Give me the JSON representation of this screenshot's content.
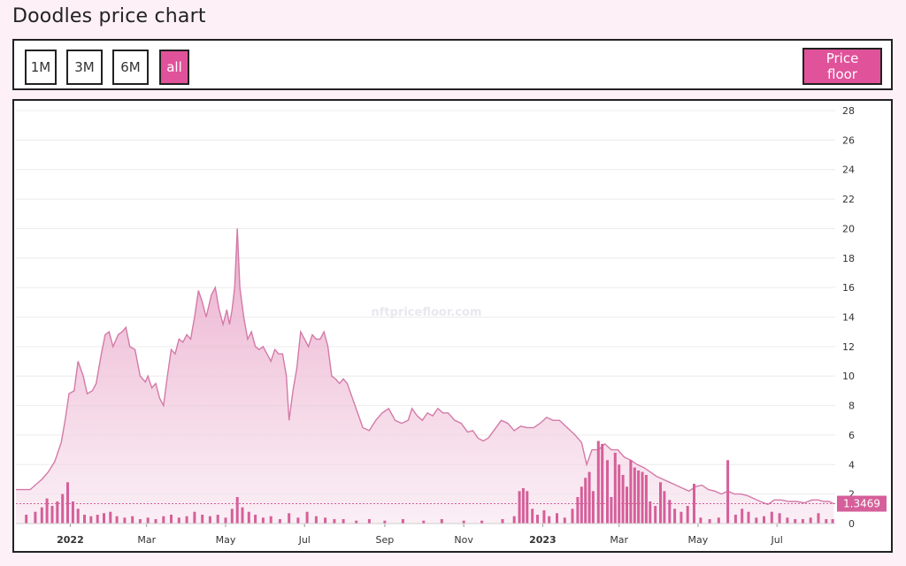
{
  "page": {
    "title": "Doodles price chart"
  },
  "toolbar": {
    "ranges": [
      {
        "label": "1M",
        "active": false
      },
      {
        "label": "3M",
        "active": false
      },
      {
        "label": "6M",
        "active": false
      },
      {
        "label": "all",
        "active": true
      }
    ],
    "floor_label": "Price floor"
  },
  "colors": {
    "accent": "#e0529a",
    "line": "#d37aa8",
    "area": "#f0c2d8",
    "volume": "#d55f9a"
  },
  "watermark": "nftpricefloor.com",
  "chart_data": {
    "type": "area",
    "title": "",
    "xlabel": "",
    "ylabel": "",
    "ylim": [
      0,
      28
    ],
    "y_ticks": [
      "0",
      "2",
      "4",
      "6",
      "8",
      "10",
      "12",
      "14",
      "16",
      "18",
      "20",
      "22",
      "24",
      "26",
      "28"
    ],
    "x_ticks": [
      {
        "label": "2022",
        "month": "2022-01",
        "bold": true
      },
      {
        "label": "Mar",
        "month": "2022-03",
        "bold": false
      },
      {
        "label": "May",
        "month": "2022-05",
        "bold": false
      },
      {
        "label": "Jul",
        "month": "2022-07",
        "bold": false
      },
      {
        "label": "Sep",
        "month": "2022-09",
        "bold": false
      },
      {
        "label": "Nov",
        "month": "2022-11",
        "bold": false
      },
      {
        "label": "2023",
        "month": "2023-01",
        "bold": true
      },
      {
        "label": "Mar",
        "month": "2023-03",
        "bold": false
      },
      {
        "label": "May",
        "month": "2023-05",
        "bold": false
      },
      {
        "label": "Jul",
        "month": "2023-07",
        "bold": false
      }
    ],
    "last_value_label": "1.3469",
    "last_value": 1.3469,
    "grid": true,
    "series": [
      {
        "values": [
          [
            "2021-11-20",
            2.3
          ],
          [
            "2021-12-01",
            2.3
          ],
          [
            "2021-12-10",
            3.0
          ],
          [
            "2021-12-15",
            3.5
          ],
          [
            "2021-12-20",
            4.2
          ],
          [
            "2021-12-25",
            5.5
          ],
          [
            "2021-12-28",
            7.0
          ],
          [
            "2021-12-31",
            8.8
          ],
          [
            "2022-01-04",
            9.0
          ],
          [
            "2022-01-07",
            11.0
          ],
          [
            "2022-01-11",
            10.0
          ],
          [
            "2022-01-14",
            8.8
          ],
          [
            "2022-01-18",
            9.0
          ],
          [
            "2022-01-21",
            9.5
          ],
          [
            "2022-01-25",
            11.5
          ],
          [
            "2022-01-28",
            12.8
          ],
          [
            "2022-01-31",
            13.0
          ],
          [
            "2022-02-03",
            12.0
          ],
          [
            "2022-02-07",
            12.8
          ],
          [
            "2022-02-10",
            13.0
          ],
          [
            "2022-02-13",
            13.3
          ],
          [
            "2022-02-16",
            12.0
          ],
          [
            "2022-02-20",
            11.8
          ],
          [
            "2022-02-24",
            10.0
          ],
          [
            "2022-02-28",
            9.6
          ],
          [
            "2022-03-02",
            10.0
          ],
          [
            "2022-03-05",
            9.2
          ],
          [
            "2022-03-08",
            9.5
          ],
          [
            "2022-03-11",
            8.5
          ],
          [
            "2022-03-14",
            8.0
          ],
          [
            "2022-03-17",
            10.0
          ],
          [
            "2022-03-20",
            11.8
          ],
          [
            "2022-03-23",
            11.5
          ],
          [
            "2022-03-26",
            12.5
          ],
          [
            "2022-03-29",
            12.3
          ],
          [
            "2022-04-01",
            12.8
          ],
          [
            "2022-04-04",
            12.5
          ],
          [
            "2022-04-07",
            14.0
          ],
          [
            "2022-04-10",
            15.8
          ],
          [
            "2022-04-13",
            15.0
          ],
          [
            "2022-04-16",
            14.0
          ],
          [
            "2022-04-20",
            15.5
          ],
          [
            "2022-04-23",
            16.0
          ],
          [
            "2022-04-26",
            14.5
          ],
          [
            "2022-04-29",
            13.5
          ],
          [
            "2022-05-02",
            14.5
          ],
          [
            "2022-05-04",
            13.5
          ],
          [
            "2022-05-06",
            14.5
          ],
          [
            "2022-05-08",
            16.0
          ],
          [
            "2022-05-10",
            20.0
          ],
          [
            "2022-05-12",
            16.0
          ],
          [
            "2022-05-15",
            14.0
          ],
          [
            "2022-05-18",
            12.5
          ],
          [
            "2022-05-21",
            13.0
          ],
          [
            "2022-05-24",
            12.0
          ],
          [
            "2022-05-27",
            11.8
          ],
          [
            "2022-05-30",
            12.0
          ],
          [
            "2022-06-02",
            11.5
          ],
          [
            "2022-06-05",
            11.0
          ],
          [
            "2022-06-08",
            11.8
          ],
          [
            "2022-06-11",
            11.5
          ],
          [
            "2022-06-14",
            11.5
          ],
          [
            "2022-06-17",
            10.0
          ],
          [
            "2022-06-19",
            7.0
          ],
          [
            "2022-06-22",
            9.0
          ],
          [
            "2022-06-25",
            10.5
          ],
          [
            "2022-06-28",
            13.0
          ],
          [
            "2022-07-01",
            12.5
          ],
          [
            "2022-07-04",
            12.0
          ],
          [
            "2022-07-07",
            12.8
          ],
          [
            "2022-07-10",
            12.5
          ],
          [
            "2022-07-13",
            12.5
          ],
          [
            "2022-07-16",
            13.0
          ],
          [
            "2022-07-19",
            12.0
          ],
          [
            "2022-07-22",
            10.0
          ],
          [
            "2022-07-25",
            9.8
          ],
          [
            "2022-07-28",
            9.5
          ],
          [
            "2022-07-31",
            9.8
          ],
          [
            "2022-08-03",
            9.5
          ],
          [
            "2022-08-07",
            8.5
          ],
          [
            "2022-08-11",
            7.5
          ],
          [
            "2022-08-15",
            6.5
          ],
          [
            "2022-08-20",
            6.3
          ],
          [
            "2022-08-25",
            7.0
          ],
          [
            "2022-08-30",
            7.5
          ],
          [
            "2022-09-04",
            7.8
          ],
          [
            "2022-09-09",
            7.0
          ],
          [
            "2022-09-14",
            6.8
          ],
          [
            "2022-09-19",
            7.0
          ],
          [
            "2022-09-22",
            7.8
          ],
          [
            "2022-09-26",
            7.3
          ],
          [
            "2022-09-30",
            7.0
          ],
          [
            "2022-10-04",
            7.5
          ],
          [
            "2022-10-08",
            7.3
          ],
          [
            "2022-10-12",
            7.8
          ],
          [
            "2022-10-16",
            7.5
          ],
          [
            "2022-10-20",
            7.5
          ],
          [
            "2022-10-25",
            7.0
          ],
          [
            "2022-10-30",
            6.8
          ],
          [
            "2022-11-04",
            6.2
          ],
          [
            "2022-11-08",
            6.3
          ],
          [
            "2022-11-12",
            5.8
          ],
          [
            "2022-11-16",
            5.6
          ],
          [
            "2022-11-20",
            5.8
          ],
          [
            "2022-11-25",
            6.4
          ],
          [
            "2022-11-30",
            7.0
          ],
          [
            "2022-12-05",
            6.8
          ],
          [
            "2022-12-10",
            6.3
          ],
          [
            "2022-12-15",
            6.6
          ],
          [
            "2022-12-20",
            6.5
          ],
          [
            "2022-12-25",
            6.5
          ],
          [
            "2022-12-30",
            6.8
          ],
          [
            "2023-01-04",
            7.2
          ],
          [
            "2023-01-09",
            7.0
          ],
          [
            "2023-01-14",
            7.0
          ],
          [
            "2023-01-20",
            6.5
          ],
          [
            "2023-01-26",
            6.0
          ],
          [
            "2023-01-31",
            5.5
          ],
          [
            "2023-02-04",
            4.0
          ],
          [
            "2023-02-08",
            5.0
          ],
          [
            "2023-02-13",
            5.0
          ],
          [
            "2023-02-18",
            5.4
          ],
          [
            "2023-02-23",
            5.0
          ],
          [
            "2023-02-28",
            5.0
          ],
          [
            "2023-03-05",
            4.5
          ],
          [
            "2023-03-10",
            4.3
          ],
          [
            "2023-03-15",
            4.0
          ],
          [
            "2023-03-20",
            3.8
          ],
          [
            "2023-03-25",
            3.5
          ],
          [
            "2023-03-30",
            3.2
          ],
          [
            "2023-04-04",
            3.0
          ],
          [
            "2023-04-09",
            2.8
          ],
          [
            "2023-04-14",
            2.6
          ],
          [
            "2023-04-19",
            2.4
          ],
          [
            "2023-04-24",
            2.2
          ],
          [
            "2023-04-29",
            2.5
          ],
          [
            "2023-05-04",
            2.6
          ],
          [
            "2023-05-09",
            2.3
          ],
          [
            "2023-05-14",
            2.2
          ],
          [
            "2023-05-19",
            2.0
          ],
          [
            "2023-05-24",
            2.2
          ],
          [
            "2023-05-29",
            2.0
          ],
          [
            "2023-06-03",
            2.0
          ],
          [
            "2023-06-08",
            1.9
          ],
          [
            "2023-06-13",
            1.7
          ],
          [
            "2023-06-18",
            1.5
          ],
          [
            "2023-06-24",
            1.3
          ],
          [
            "2023-06-29",
            1.6
          ],
          [
            "2023-07-04",
            1.6
          ],
          [
            "2023-07-10",
            1.5
          ],
          [
            "2023-07-16",
            1.5
          ],
          [
            "2023-07-22",
            1.4
          ],
          [
            "2023-07-28",
            1.6
          ],
          [
            "2023-08-02",
            1.6
          ],
          [
            "2023-08-06",
            1.5
          ],
          [
            "2023-08-10",
            1.5
          ],
          [
            "2023-08-14",
            1.35
          ]
        ]
      },
      {
        "type": "bar",
        "values": [
          [
            "2021-11-28",
            0.6
          ],
          [
            "2021-12-05",
            0.8
          ],
          [
            "2021-12-10",
            1.1
          ],
          [
            "2021-12-14",
            1.7
          ],
          [
            "2021-12-18",
            1.2
          ],
          [
            "2021-12-22",
            1.5
          ],
          [
            "2021-12-26",
            2.0
          ],
          [
            "2021-12-30",
            2.8
          ],
          [
            "2022-01-03",
            1.5
          ],
          [
            "2022-01-07",
            1.0
          ],
          [
            "2022-01-12",
            0.6
          ],
          [
            "2022-01-17",
            0.5
          ],
          [
            "2022-01-22",
            0.6
          ],
          [
            "2022-01-27",
            0.7
          ],
          [
            "2022-02-01",
            0.8
          ],
          [
            "2022-02-06",
            0.5
          ],
          [
            "2022-02-12",
            0.4
          ],
          [
            "2022-02-18",
            0.5
          ],
          [
            "2022-02-24",
            0.3
          ],
          [
            "2022-03-02",
            0.4
          ],
          [
            "2022-03-08",
            0.3
          ],
          [
            "2022-03-14",
            0.5
          ],
          [
            "2022-03-20",
            0.6
          ],
          [
            "2022-03-26",
            0.4
          ],
          [
            "2022-04-01",
            0.5
          ],
          [
            "2022-04-07",
            0.8
          ],
          [
            "2022-04-13",
            0.6
          ],
          [
            "2022-04-19",
            0.5
          ],
          [
            "2022-04-25",
            0.6
          ],
          [
            "2022-05-01",
            0.4
          ],
          [
            "2022-05-06",
            1.0
          ],
          [
            "2022-05-10",
            1.8
          ],
          [
            "2022-05-14",
            1.1
          ],
          [
            "2022-05-19",
            0.8
          ],
          [
            "2022-05-24",
            0.6
          ],
          [
            "2022-05-30",
            0.4
          ],
          [
            "2022-06-05",
            0.5
          ],
          [
            "2022-06-12",
            0.3
          ],
          [
            "2022-06-19",
            0.7
          ],
          [
            "2022-06-26",
            0.4
          ],
          [
            "2022-07-03",
            0.8
          ],
          [
            "2022-07-10",
            0.5
          ],
          [
            "2022-07-17",
            0.4
          ],
          [
            "2022-07-24",
            0.3
          ],
          [
            "2022-07-31",
            0.3
          ],
          [
            "2022-08-10",
            0.2
          ],
          [
            "2022-08-20",
            0.3
          ],
          [
            "2022-09-01",
            0.2
          ],
          [
            "2022-09-15",
            0.3
          ],
          [
            "2022-10-01",
            0.2
          ],
          [
            "2022-10-15",
            0.3
          ],
          [
            "2022-11-01",
            0.2
          ],
          [
            "2022-11-15",
            0.2
          ],
          [
            "2022-12-01",
            0.3
          ],
          [
            "2022-12-10",
            0.5
          ],
          [
            "2022-12-14",
            2.2
          ],
          [
            "2022-12-17",
            2.4
          ],
          [
            "2022-12-20",
            2.2
          ],
          [
            "2022-12-24",
            1.0
          ],
          [
            "2022-12-28",
            0.6
          ],
          [
            "2023-01-02",
            0.9
          ],
          [
            "2023-01-06",
            0.5
          ],
          [
            "2023-01-12",
            0.7
          ],
          [
            "2023-01-18",
            0.4
          ],
          [
            "2023-01-24",
            1.0
          ],
          [
            "2023-01-28",
            1.8
          ],
          [
            "2023-01-31",
            2.5
          ],
          [
            "2023-02-03",
            3.1
          ],
          [
            "2023-02-06",
            3.5
          ],
          [
            "2023-02-09",
            2.2
          ],
          [
            "2023-02-13",
            5.6
          ],
          [
            "2023-02-16",
            5.4
          ],
          [
            "2023-02-20",
            4.3
          ],
          [
            "2023-02-23",
            1.8
          ],
          [
            "2023-02-26",
            4.8
          ],
          [
            "2023-03-01",
            4.0
          ],
          [
            "2023-03-04",
            3.3
          ],
          [
            "2023-03-07",
            2.5
          ],
          [
            "2023-03-10",
            4.3
          ],
          [
            "2023-03-13",
            3.8
          ],
          [
            "2023-03-16",
            3.6
          ],
          [
            "2023-03-19",
            3.5
          ],
          [
            "2023-03-22",
            3.3
          ],
          [
            "2023-03-25",
            1.5
          ],
          [
            "2023-03-29",
            1.2
          ],
          [
            "2023-04-02",
            2.8
          ],
          [
            "2023-04-05",
            2.2
          ],
          [
            "2023-04-09",
            1.6
          ],
          [
            "2023-04-13",
            1.0
          ],
          [
            "2023-04-18",
            0.8
          ],
          [
            "2023-04-23",
            1.2
          ],
          [
            "2023-04-28",
            2.7
          ],
          [
            "2023-05-03",
            0.4
          ],
          [
            "2023-05-10",
            0.3
          ],
          [
            "2023-05-17",
            0.4
          ],
          [
            "2023-05-24",
            4.3
          ],
          [
            "2023-05-30",
            0.6
          ],
          [
            "2023-06-04",
            1.0
          ],
          [
            "2023-06-09",
            0.8
          ],
          [
            "2023-06-15",
            0.4
          ],
          [
            "2023-06-21",
            0.5
          ],
          [
            "2023-06-27",
            0.8
          ],
          [
            "2023-07-03",
            0.7
          ],
          [
            "2023-07-09",
            0.4
          ],
          [
            "2023-07-15",
            0.3
          ],
          [
            "2023-07-21",
            0.3
          ],
          [
            "2023-07-27",
            0.4
          ],
          [
            "2023-08-02",
            0.7
          ],
          [
            "2023-08-08",
            0.3
          ],
          [
            "2023-08-13",
            0.3
          ]
        ]
      }
    ]
  }
}
